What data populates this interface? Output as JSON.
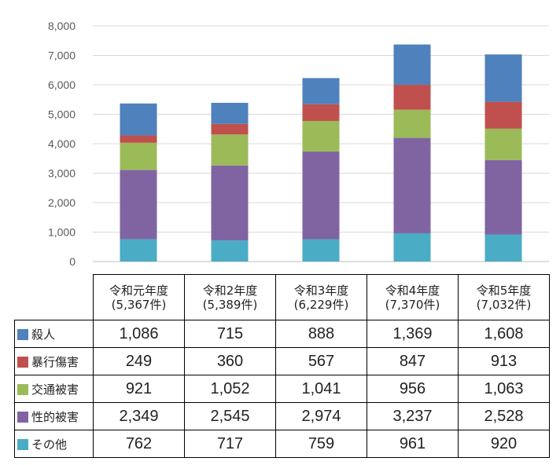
{
  "chart_data": {
    "type": "bar",
    "stacked": true,
    "ylim": [
      0,
      8000
    ],
    "yticks": [
      "0",
      "1,000",
      "2,000",
      "3,000",
      "4,000",
      "5,000",
      "6,000",
      "7,000",
      "8,000"
    ],
    "y_tick_values": [
      0,
      1000,
      2000,
      3000,
      4000,
      5000,
      6000,
      7000,
      8000
    ],
    "grid": true,
    "categories": [
      {
        "line1": "令和元年度",
        "line2": "(5,367件)"
      },
      {
        "line1": "令和2年度",
        "line2": "(5,389件)"
      },
      {
        "line1": "令和3年度",
        "line2": "(6,229件)"
      },
      {
        "line1": "令和4年度",
        "line2": "(7,370件)"
      },
      {
        "line1": "令和5年度",
        "line2": "(7,032件)"
      }
    ],
    "series": [
      {
        "name": "殺人",
        "color": "#4f81bd",
        "values": [
          1086,
          715,
          888,
          1369,
          1608
        ],
        "labels": [
          "1,086",
          "715",
          "888",
          "1,369",
          "1,608"
        ]
      },
      {
        "name": "暴行傷害",
        "color": "#c0504d",
        "values": [
          249,
          360,
          567,
          847,
          913
        ],
        "labels": [
          "249",
          "360",
          "567",
          "847",
          "913"
        ]
      },
      {
        "name": "交通被害",
        "color": "#9bbb59",
        "values": [
          921,
          1052,
          1041,
          956,
          1063
        ],
        "labels": [
          "921",
          "1,052",
          "1,041",
          "956",
          "1,063"
        ]
      },
      {
        "name": "性的被害",
        "color": "#8064a2",
        "values": [
          2349,
          2545,
          2974,
          3237,
          2528
        ],
        "labels": [
          "2,349",
          "2,545",
          "2,974",
          "3,237",
          "2,528"
        ]
      },
      {
        "name": "その他",
        "color": "#4bacc6",
        "values": [
          762,
          717,
          759,
          961,
          920
        ],
        "labels": [
          "762",
          "717",
          "759",
          "961",
          "920"
        ]
      }
    ]
  }
}
